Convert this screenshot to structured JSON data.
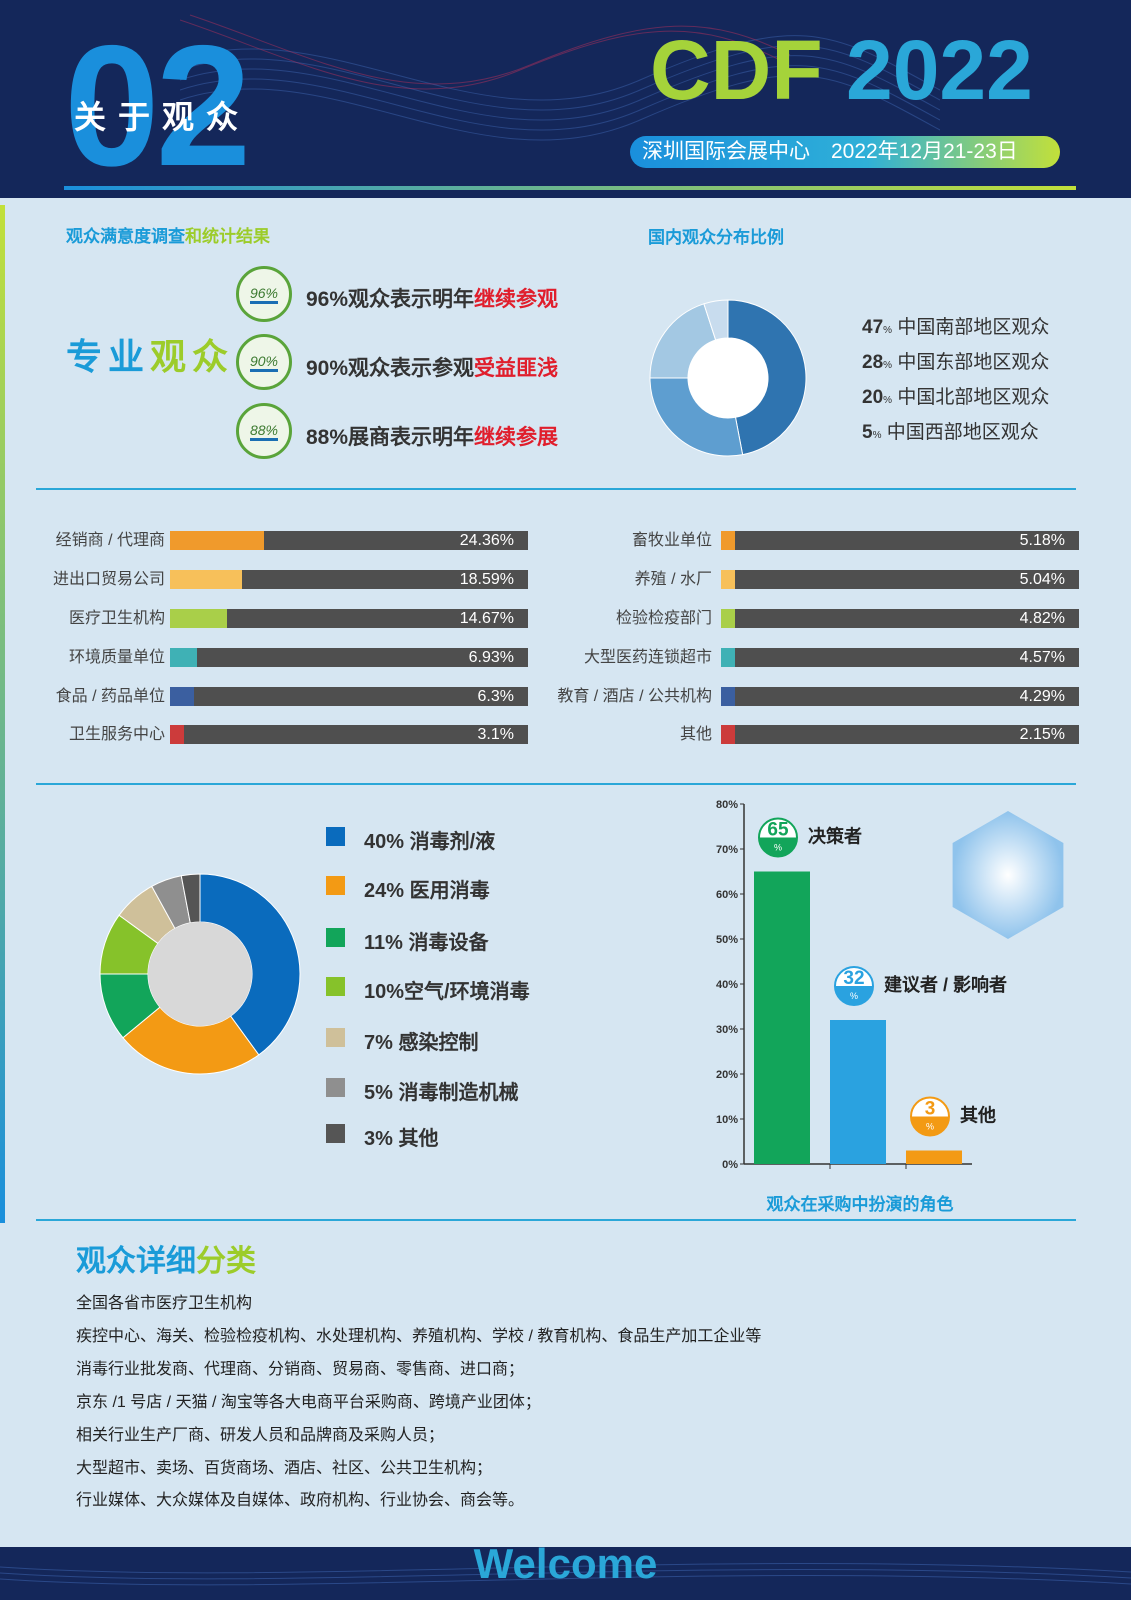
{
  "header": {
    "number": "02",
    "section_title": "关于观众",
    "event_name_a": "CDF",
    "event_name_b": "2022",
    "venue": "深圳国际会展中心　2022年12月21-23日"
  },
  "satisfaction": {
    "heading_a": "观众满意度调查",
    "heading_b": "和统计结果",
    "audience_label_a": "专业",
    "audience_label_b": "观众",
    "items": [
      {
        "badge": "96%",
        "text": "96%观众表示明年",
        "highlight": "继续参观"
      },
      {
        "badge": "90%",
        "text": "90%观众表示参观",
        "highlight": "受益匪浅"
      },
      {
        "badge": "88%",
        "text": "88%展商表示明年",
        "highlight": "继续参展"
      }
    ]
  },
  "colors": {
    "brand_blue": "#1a9bd8",
    "brand_green": "#9ccc2a",
    "highlight_red": "#e01e2c",
    "track": "#4f4f4f"
  },
  "chart_data": [
    {
      "type": "pie",
      "title": "国内观众分布比例",
      "categories": [
        "中国南部地区观众",
        "中国东部地区观众",
        "中国北部地区观众",
        "中国西部地区观众"
      ],
      "values": [
        47,
        28,
        20,
        5
      ],
      "value_labels": [
        "47",
        "28",
        "20",
        "5"
      ],
      "unit": "%",
      "colors": [
        "#2f74b0",
        "#5e9ed0",
        "#a3c8e3",
        "#c8dcee"
      ]
    },
    {
      "type": "bar",
      "orientation": "horizontal",
      "categories": [
        "经销商 / 代理商",
        "进出口贸易公司",
        "医疗卫生机构",
        "环境质量单位",
        "食品 / 药品单位",
        "卫生服务中心"
      ],
      "values": [
        24.36,
        18.59,
        14.67,
        6.93,
        6.3,
        3.1
      ],
      "value_labels": [
        "24.36%",
        "18.59%",
        "14.67%",
        "6.93%",
        "6.3%",
        "3.1%"
      ],
      "colors": [
        "#f09a2c",
        "#f7c05a",
        "#a9cf49",
        "#3fb1b5",
        "#3b5fa0",
        "#cc3b3b"
      ]
    },
    {
      "type": "bar",
      "orientation": "horizontal",
      "categories": [
        "畜牧业单位",
        "养殖 / 水厂",
        "检验检疫部门",
        "大型医药连锁超市",
        "教育 / 酒店 / 公共机构",
        "其他"
      ],
      "values": [
        5.18,
        5.04,
        4.82,
        4.57,
        4.29,
        2.15
      ],
      "value_labels": [
        "5.18%",
        "5.04%",
        "4.82%",
        "4.57%",
        "4.29%",
        "2.15%"
      ],
      "colors": [
        "#f09a2c",
        "#f7c05a",
        "#a9cf49",
        "#3fb1b5",
        "#3b5fa0",
        "#cc3b3b"
      ]
    },
    {
      "type": "pie",
      "categories": [
        "消毒剂/液",
        "医用消毒",
        "消毒设备",
        "空气/环境消毒",
        "感染控制",
        "消毒制造机械",
        "其他"
      ],
      "values": [
        40,
        24,
        11,
        10,
        7,
        5,
        3
      ],
      "legend_labels": [
        "40% 消毒剂/液",
        "24% 医用消毒",
        "11% 消毒设备",
        "10%空气/环境消毒",
        "7% 感染控制",
        "5% 消毒制造机械",
        "3% 其他"
      ],
      "colors": [
        "#0a6bbd",
        "#f39a14",
        "#12a55a",
        "#86c22a",
        "#cfc09a",
        "#8f8f8f",
        "#555555"
      ]
    },
    {
      "type": "bar",
      "title": "观众在采购中扮演的角色",
      "categories": [
        "决策者",
        "建议者 / 影响者",
        "其他"
      ],
      "values": [
        65,
        32,
        3
      ],
      "value_labels": [
        "65",
        "32",
        "3"
      ],
      "unit": "%",
      "ylim": [
        0,
        80
      ],
      "yticks": [
        "0%",
        "10%",
        "20%",
        "30%",
        "40%",
        "50%",
        "60%",
        "70%",
        "80%"
      ],
      "colors": [
        "#12a55a",
        "#2aa2e0",
        "#f39a14"
      ]
    }
  ],
  "detail": {
    "title_a": "观众详细",
    "title_b": "分类",
    "lines": [
      "全国各省市医疗卫生机构",
      "疾控中心、海关、检验检疫机构、水处理机构、养殖机构、学校 / 教育机构、食品生产加工企业等",
      "消毒行业批发商、代理商、分销商、贸易商、零售商、进口商；",
      "京东 /1 号店 / 天猫 / 淘宝等各大电商平台采购商、跨境产业团体；",
      "相关行业生产厂商、研发人员和品牌商及采购人员；",
      "大型超市、卖场、百货商场、酒店、社区、公共卫生机构；",
      "行业媒体、大众媒体及自媒体、政府机构、行业协会、商会等。"
    ]
  },
  "footer": {
    "welcome": "Welcome"
  }
}
